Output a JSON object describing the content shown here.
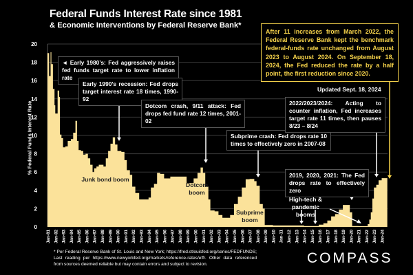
{
  "header": {
    "title": "Federal Funds Interest Rate since 1981",
    "subtitle": "& Economic Interventions by Federal Reserve Bank*"
  },
  "note_box": "After 11 increases from March 2022, the Federal Reserve Bank kept the benchmark federal-funds rate unchanged from August 2023 to August 2024. On September 18, 2024, the Fed reduced the rate by a half point, the first reduction since 2020.",
  "updated": "Updated Sept. 18, 2024",
  "annotations": {
    "a1980": "◄ Early 1980’s: Fed aggressively raises fed funds target rate to lower inflation rate",
    "a1990": "Early 1990’s recession: Fed drops target interest rate 18 times, 1990-92",
    "a2001": "Dotcom crash, 9/11 attack: Fed drops fed fund rate 12 times, 2001-02",
    "a2007": "Subprime crash: Fed drops rate 10 times to effectively zero in 2007-08",
    "a2022": "2022/2023/2024: Acting to counter inflation, Fed increases target rate 11 times, then pauses 8/23 – 8/24",
    "a2019": "2019, 2020, 2021: The Fed drops rate to effectively zero"
  },
  "labels": {
    "junk": "Junk bond boom",
    "dotcom": "Dotcom boom",
    "subprime": "Subprime boom",
    "hightech": "High-tech & pandemic booms"
  },
  "footer": "* Per Federal Reserve Bank of St. Louis and New York; https://fred.stlouisfed.org/series/FEDFUNDS; Last reading per https://www.newyorkfed.org/markets/reference-rates/effr. Other data referenced from sources deemed reliable but may contain errors and subject to revision.",
  "logo": "COMPASS",
  "colors": {
    "area": "#fbe29a",
    "note": "#f5d24a",
    "grid": "#3a3a3a"
  },
  "chart_data": {
    "type": "area",
    "title": "Federal Funds Interest Rate since 1981",
    "ylabel": "% Federal Funds Interest Rate",
    "xlabel": "",
    "ylim": [
      0,
      20
    ],
    "yticks": [
      0,
      2,
      4,
      6,
      8,
      10,
      12,
      14,
      16,
      18,
      20
    ],
    "xticks": [
      "Jan-81",
      "Jan-82",
      "Jan-83",
      "Jan-84",
      "Jan-85",
      "Jan-86",
      "Jan-87",
      "Jan-88",
      "Jan-89",
      "Jan-90",
      "Jan-91",
      "Jan-92",
      "Jan-93",
      "Jan-94",
      "Jan-95",
      "Jan-96",
      "Jan-97",
      "Jan-98",
      "Jan-99",
      "Jan-00",
      "Jan-01",
      "Jan-02",
      "Jan-03",
      "Jan-04",
      "Jan-05",
      "Jan-06",
      "Jan-07",
      "Jan-08",
      "Jan-09",
      "Jan-10",
      "Jan-11",
      "Jan-12",
      "Jan-13",
      "Jan-14",
      "Jan-15",
      "Jan-16",
      "Jan-17",
      "Jan-18",
      "Jan-19",
      "Jan-20",
      "Jan-21",
      "Jan-22",
      "Jan-23",
      "Jan-24"
    ],
    "grid": true,
    "x": [
      1981.0,
      1981.2,
      1981.4,
      1981.5,
      1981.7,
      1981.9,
      1982.0,
      1982.3,
      1982.5,
      1982.6,
      1982.8,
      1983.0,
      1983.3,
      1983.6,
      1984.0,
      1984.3,
      1984.6,
      1984.8,
      1985.0,
      1985.3,
      1985.6,
      1985.9,
      1986.2,
      1986.5,
      1986.8,
      1987.0,
      1987.3,
      1987.6,
      1987.9,
      1988.2,
      1988.5,
      1988.8,
      1989.1,
      1989.4,
      1989.7,
      1990.0,
      1990.5,
      1990.9,
      1991.2,
      1991.6,
      1991.9,
      1992.3,
      1992.8,
      1993.5,
      1994.0,
      1994.3,
      1994.7,
      1995.1,
      1995.5,
      1996.0,
      1996.8,
      1997.5,
      1998.5,
      1998.9,
      1999.3,
      1999.8,
      2000.3,
      2000.7,
      2001.0,
      2001.3,
      2001.7,
      2001.95,
      2002.5,
      2003.0,
      2003.5,
      2004.0,
      2004.5,
      2005.0,
      2005.5,
      2006.0,
      2006.5,
      2007.0,
      2007.6,
      2007.9,
      2008.3,
      2008.7,
      2008.95,
      2010.0,
      2012.0,
      2014.0,
      2015.9,
      2016.5,
      2017.0,
      2017.5,
      2018.0,
      2018.5,
      2019.0,
      2019.5,
      2019.9,
      2020.2,
      2021.0,
      2022.0,
      2022.2,
      2022.4,
      2022.6,
      2022.8,
      2023.0,
      2023.3,
      2023.6,
      2024.0,
      2024.6,
      2024.72
    ],
    "y": [
      19.0,
      16.5,
      19.1,
      17.8,
      15.1,
      13.3,
      12.4,
      14.9,
      14.2,
      10.1,
      9.7,
      8.7,
      8.8,
      9.4,
      9.6,
      10.3,
      11.6,
      9.4,
      8.4,
      8.3,
      7.9,
      8.0,
      7.5,
      6.8,
      6.0,
      6.4,
      6.6,
      6.8,
      6.8,
      6.6,
      7.5,
      8.3,
      9.1,
      9.8,
      9.0,
      8.3,
      8.2,
      7.3,
      6.2,
      5.7,
      4.4,
      3.7,
      3.0,
      3.0,
      3.2,
      4.3,
      4.7,
      5.9,
      5.8,
      5.3,
      5.5,
      5.5,
      5.5,
      4.8,
      4.8,
      5.3,
      5.9,
      6.5,
      5.9,
      4.4,
      3.0,
      1.8,
      1.7,
      1.3,
      1.0,
      1.0,
      1.3,
      2.5,
      3.3,
      4.3,
      5.2,
      5.25,
      5.0,
      4.5,
      2.5,
      2.0,
      0.2,
      0.15,
      0.15,
      0.1,
      0.25,
      0.4,
      0.7,
      1.15,
      1.4,
      1.9,
      2.4,
      2.4,
      1.6,
      0.1,
      0.08,
      0.08,
      0.3,
      0.8,
      1.6,
      3.1,
      4.3,
      4.6,
      5.1,
      5.33,
      5.33,
      4.83
    ]
  }
}
